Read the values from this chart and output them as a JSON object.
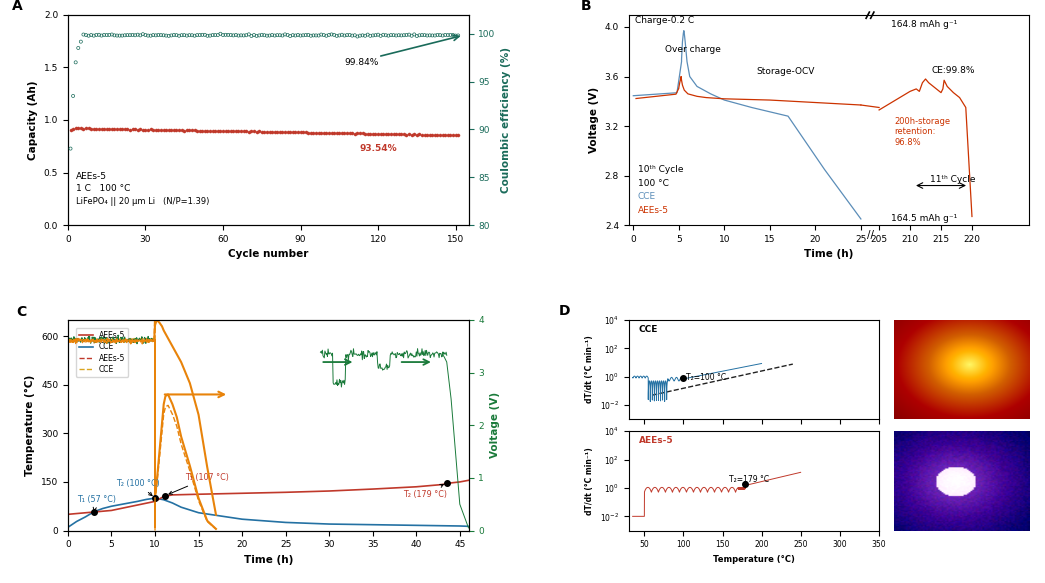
{
  "panel_A": {
    "label": "A",
    "xlabel": "Cycle number",
    "ylabel_left": "Capacity (Ah)",
    "ylabel_right": "Coulombic efficiency (%)",
    "xlim": [
      0,
      155
    ],
    "ylim_left": [
      0.0,
      2.0
    ],
    "ylim_right": [
      80,
      102
    ],
    "yticks_left": [
      0.0,
      0.5,
      1.0,
      1.5,
      2.0
    ],
    "yticks_right": [
      80,
      85,
      90,
      95,
      100
    ],
    "xticks": [
      0,
      30,
      60,
      90,
      120,
      150
    ],
    "annotation_CE": "99.84%",
    "annotation_cap": "93.54%",
    "text_lines": [
      "AEEs-5",
      "1 C   100 °C",
      "LiFePO₄ || 20 μm Li   (N/P=1.39)"
    ],
    "cap_color": "#C0392B",
    "ce_color": "#1A6B5A"
  },
  "panel_B": {
    "label": "B",
    "xlabel": "Time (h)",
    "ylabel": "Voltage (V)",
    "ylim": [
      2.4,
      4.1
    ],
    "yticks": [
      2.4,
      2.8,
      3.2,
      3.6,
      4.0
    ],
    "cce_color": "#5B8DB8",
    "aees_color": "#CC3300"
  },
  "panel_C": {
    "label": "C",
    "xlabel": "Time (h)",
    "ylabel_left": "Temperature (°C)",
    "ylabel_right": "Voltage (V)",
    "xlim": [
      0,
      46
    ],
    "ylim_left": [
      0,
      650
    ],
    "ylim_right": [
      0,
      4
    ],
    "yticks_left": [
      0,
      150,
      300,
      450,
      600
    ],
    "yticks_right": [
      0,
      1,
      2,
      3,
      4
    ],
    "xticks": [
      0,
      5,
      10,
      15,
      20,
      25,
      30,
      35,
      40,
      45
    ],
    "aees_temp_color": "#C0392B",
    "cce_temp_color": "#2471A3",
    "orange_color": "#E8830A",
    "green_color": "#1A7A3A"
  },
  "panel_D": {
    "label": "D",
    "xlabel": "Temperature (°C)",
    "ylabel": "dT/dt (°C min⁻¹)",
    "cce_color": "#2471A3",
    "aees_color": "#C0392B",
    "dashed_color": "#222222"
  },
  "background_color": "#FFFFFF",
  "panel_label_fontsize": 10,
  "axis_label_fontsize": 7.5,
  "tick_fontsize": 6.5,
  "annotation_fontsize": 6.5
}
